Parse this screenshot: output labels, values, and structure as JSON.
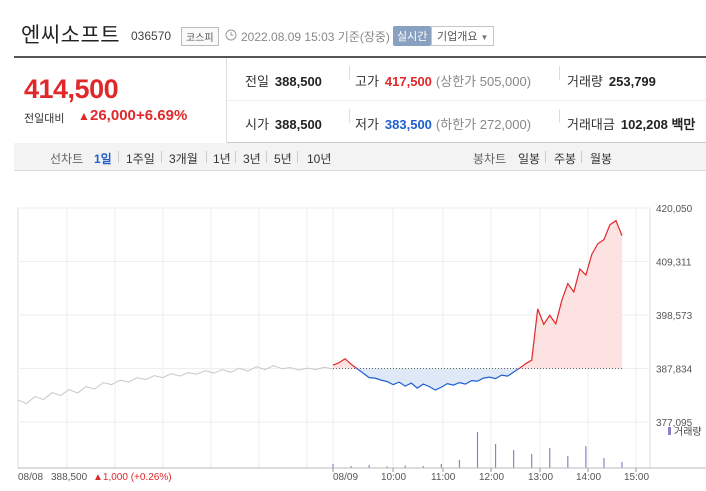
{
  "header": {
    "stock_name": "엔씨소프트",
    "stock_code": "036570",
    "market": "코스피",
    "timestamp": "2022.08.09 15:03",
    "basis": "기준(장중)",
    "realtime_label": "실시간",
    "company_overview_label": "기업개요"
  },
  "price": {
    "current": "414,500",
    "change_label": "전일대비",
    "change_symbol": "▲",
    "change_value": "26,000",
    "change_pct": "+6.69%"
  },
  "stats": {
    "prev_close_label": "전일",
    "prev_close": "388,500",
    "high_label": "고가",
    "high": "417,500",
    "upper_limit": "(상한가 505,000)",
    "volume_label": "거래량",
    "volume": "253,799",
    "open_label": "시가",
    "open": "388,500",
    "low_label": "저가",
    "low": "383,500",
    "lower_limit": "(하한가 272,000)",
    "trade_value_label": "거래대금",
    "trade_value": "102,208 백만"
  },
  "tabs": {
    "line_chart_label": "선차트",
    "periods": [
      "1일",
      "1주일",
      "3개월",
      "1년",
      "3년",
      "5년",
      "10년"
    ],
    "active_period": "1일",
    "candle_chart_label": "봉차트",
    "candle_periods": [
      "일봉",
      "주봉",
      "월봉"
    ]
  },
  "colors": {
    "up": "#e0282a",
    "down": "#1f5fcf",
    "prev_day_line": "#c8c8c8"
  },
  "chart_data": {
    "type": "line",
    "y_ticks": [
      "420,050",
      "409,311",
      "398,573",
      "387,834",
      "377,095"
    ],
    "ylim": [
      377095,
      420050
    ],
    "baseline": 387834,
    "x_ticks": [
      "08/09",
      "10:00",
      "11:00",
      "12:00",
      "13:00",
      "14:00",
      "15:00"
    ],
    "prev_day_label": "08/08",
    "prev_day_summary": {
      "price": "388,500",
      "change": "▲1,000 (+0.26%)"
    },
    "volume_legend": "거래량",
    "series": [
      {
        "values": [
          381500,
          380800,
          382200,
          381600,
          383000,
          382400,
          383600,
          382900,
          384200,
          383700,
          385000,
          384600,
          385500,
          385100,
          386000,
          385600,
          386400,
          386000,
          386800,
          386300,
          387000,
          386700,
          387400,
          386900,
          387600,
          387100,
          387900,
          387300,
          388200,
          387600,
          388400,
          387800,
          388000,
          387500,
          387900,
          387600,
          388100,
          387700
        ]
      },
      {
        "values": [
          388500,
          389000,
          389800,
          388700,
          387800,
          386900,
          386000,
          385900,
          385500,
          385200,
          384600,
          385100,
          384300,
          384900,
          383900,
          384700,
          384200,
          383500,
          384100,
          384800,
          384500,
          385000,
          384700,
          385400,
          385300,
          385900,
          386100,
          385800,
          386500,
          386300,
          387100,
          387900,
          388800,
          389500,
          399800,
          396700,
          398500,
          396800,
          401500,
          404900,
          403200,
          407800,
          406600,
          410800,
          412900,
          413700,
          416700,
          417500,
          414500
        ]
      }
    ],
    "volume_heights": [
      0.1,
      0.05,
      0.08,
      0.04,
      0.06,
      0.05,
      0.1,
      0.2,
      0.9,
      0.6,
      0.45,
      0.35,
      0.5,
      0.3,
      0.55,
      0.25,
      0.15
    ]
  }
}
